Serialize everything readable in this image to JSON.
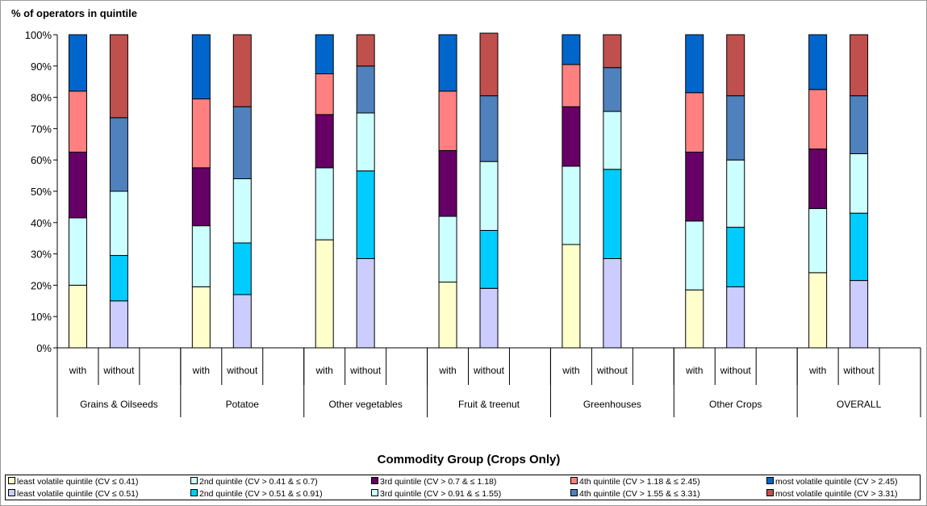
{
  "chart_data": {
    "type": "bar",
    "stacked": true,
    "title": "",
    "ylabel": "% of operators in quintile",
    "xlabel": "Commodity Group (Crops Only)",
    "ylim": [
      0,
      100
    ],
    "y_ticks": [
      "0%",
      "10%",
      "20%",
      "30%",
      "40%",
      "50%",
      "60%",
      "70%",
      "80%",
      "90%",
      "100%"
    ],
    "grid": false,
    "legend_position": "bottom",
    "groups": [
      "Grains & Oilseeds",
      "Potatoe",
      "Other vegetables",
      "Fruit & treenut",
      "Greenhouses",
      "Other Crops",
      "OVERALL"
    ],
    "sub_categories": [
      "with",
      "without"
    ],
    "series_with": [
      {
        "name": "least volatile quintile (CV ≤ 0.41)",
        "color": "#ffffcc",
        "values": [
          20,
          19.5,
          34.5,
          21,
          33,
          18.5,
          24
        ]
      },
      {
        "name": "2nd quintile (CV > 0.41 & ≤ 0.7)",
        "color": "#ccffff",
        "values": [
          21.5,
          19.5,
          23,
          21,
          25,
          22,
          20.5
        ]
      },
      {
        "name": "3rd quintile (CV > 0.7 & ≤ 1.18)",
        "color": "#660066",
        "values": [
          21,
          18.5,
          17,
          21,
          19,
          22,
          19
        ]
      },
      {
        "name": "4th quintile (CV > 1.18 & ≤ 2.45)",
        "color": "#ff8080",
        "values": [
          19.5,
          22,
          13,
          19,
          13.5,
          19,
          19
        ]
      },
      {
        "name": "most volatile quintile (CV > 2.45)",
        "color": "#0066cc",
        "values": [
          18,
          20.5,
          12.5,
          18,
          9.5,
          18.5,
          17.5
        ]
      }
    ],
    "series_without": [
      {
        "name": "least volatile quintile (CV ≤ 0.51)",
        "color": "#ccccff",
        "values": [
          15,
          17,
          28.5,
          19,
          28.5,
          19.5,
          21.5
        ]
      },
      {
        "name": "2nd quintile (CV > 0.51 & ≤ 0.91)",
        "color": "#00ccff",
        "values": [
          14.5,
          16.5,
          28,
          18.5,
          28.5,
          19,
          21.5
        ]
      },
      {
        "name": "3rd quintile (CV > 0.91 & ≤ 1.55)",
        "color": "#ccffff",
        "values": [
          20.5,
          20.5,
          18.5,
          22,
          18.5,
          21.5,
          19
        ]
      },
      {
        "name": "4th quintile (CV > 1.55 & ≤ 3.31)",
        "color": "#4f81bd",
        "values": [
          23.5,
          23,
          15,
          21,
          14,
          20.5,
          18.5
        ]
      },
      {
        "name": "most volatile quintile (CV > 3.31)",
        "color": "#c0504d",
        "values": [
          26.5,
          23,
          10,
          20,
          10.5,
          19.5,
          19.5
        ]
      }
    ]
  }
}
